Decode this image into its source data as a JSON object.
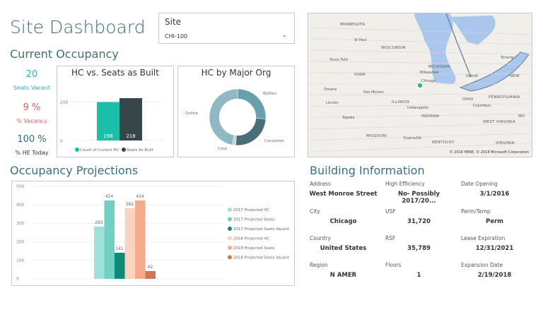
{
  "title": "Site Dashboard",
  "slicer": {
    "label": "Site",
    "value": "CHI-100",
    "icon": "chevron-down-icon"
  },
  "current_occupancy": {
    "heading": "Current Occupancy",
    "kpis": [
      {
        "value": "20",
        "label": "Seats Vacant",
        "color": "#2bb5a3"
      },
      {
        "value": "9 %",
        "label": "% Vacancy",
        "color": "#e8605a"
      },
      {
        "value": "100 %",
        "label": "% HE Today",
        "color": "#2f6b6b"
      }
    ]
  },
  "chart_data": [
    {
      "type": "bar",
      "title": "HC vs. Seats as Built",
      "categories": [
        ""
      ],
      "series": [
        {
          "name": "Count of Current HC",
          "values": [
            198
          ],
          "color": "#1bbfa9"
        },
        {
          "name": "Seats As Built",
          "values": [
            218
          ],
          "color": "#374649"
        }
      ],
      "yticks": [
        "0",
        "200"
      ],
      "ylim": [
        0,
        250
      ],
      "legend": "bottom",
      "grid": true
    },
    {
      "type": "pie",
      "title": "HC by Major Org",
      "donut": true,
      "labels": [
        "BizDev",
        "Consumer",
        "Corp",
        "Online"
      ],
      "values": [
        26,
        25,
        2,
        47
      ],
      "colors": [
        "#6a9fac",
        "#4a6f7b",
        "#c5d4d8",
        "#8fb8c3"
      ]
    },
    {
      "type": "bar",
      "title": "Occupancy Projections",
      "categories": [
        ""
      ],
      "series": [
        {
          "name": "2017 Projected HC",
          "values": [
            283
          ],
          "color": "#9fe0d8"
        },
        {
          "name": "2017 Projected Seats",
          "values": [
            424
          ],
          "color": "#6fd1c4"
        },
        {
          "name": "2017 Projected Seats Vacant",
          "values": [
            141
          ],
          "color": "#0e8a78"
        },
        {
          "name": "2018 Projected HC",
          "values": [
            382
          ],
          "color": "#fbd3c1"
        },
        {
          "name": "2018 Projected Seats",
          "values": [
            424
          ],
          "color": "#f6aa87"
        },
        {
          "name": "2018 Projected Seats Vacant",
          "values": [
            42
          ],
          "color": "#c97a55"
        }
      ],
      "yticks": [
        "0",
        "100",
        "200",
        "300",
        "400",
        "500"
      ],
      "ylim": [
        0,
        500
      ],
      "legend": "right",
      "grid": true
    }
  ],
  "projections": {
    "heading": "Occupancy Projections"
  },
  "building": {
    "heading": "Building Information",
    "fields": [
      {
        "label": "Address",
        "value": "West Monroe Street"
      },
      {
        "label": "High Efficiency",
        "value": "No- Possibly 2017/20..."
      },
      {
        "label": "Date Opening",
        "value": "3/1/2016"
      },
      {
        "label": "City",
        "value": "Chicago"
      },
      {
        "label": "USF",
        "value": "31,720"
      },
      {
        "label": "Perm/Temp",
        "value": "Perm"
      },
      {
        "label": "Country",
        "value": "United States"
      },
      {
        "label": "RSF",
        "value": "35,789"
      },
      {
        "label": "Lease Expiration",
        "value": "12/31/2021"
      },
      {
        "label": "Region",
        "value": "N AMER"
      },
      {
        "label": "Floors",
        "value": "1"
      },
      {
        "label": "Expansion Date",
        "value": "2/19/2018"
      }
    ]
  },
  "map": {
    "labels": [
      "MINNESOTA",
      "St Paul",
      "WISCONSIN",
      "Sioux Falls",
      "IOWA",
      "Milwaukee",
      "MICHIGAN",
      "Chicago",
      "Detroit",
      "Toronto",
      "NEW",
      "Omaha",
      "Des Moines",
      "Lincoln",
      "ILLINOIS",
      "OHIO",
      "Columbus",
      "PENNSYLVANIA",
      "Indianapolis",
      "INDIANA",
      "Topeka",
      "WEST VIRGINIA",
      "MD",
      "MISSOURI",
      "Evansville",
      "KENTUCKY",
      "VIRGINIA"
    ],
    "copyright": "© 2018 HERE, © 2018 Microsoft Corporation",
    "marker_color": "#2bb5a3"
  }
}
